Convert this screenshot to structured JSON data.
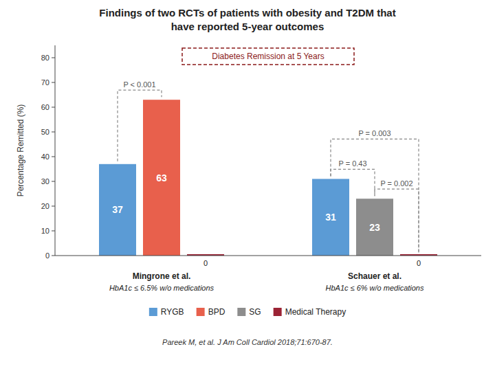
{
  "chart_data": {
    "type": "bar",
    "title": [
      "Findings of two RCTs of patients with obesity and T2DM that",
      "have reported 5-year outcomes"
    ],
    "subtitle": "Diabetes Remission at 5 Years",
    "y_label": "Percentage Remitted (%)",
    "categories": [
      "Mingrone et al.",
      "Schauer et al."
    ],
    "series": [
      {
        "name": "RYGB",
        "color": "#5b9bd5",
        "values": [
          37,
          31
        ]
      },
      {
        "name": "BPD",
        "color": "#e8604c",
        "values": [
          63,
          null
        ]
      },
      {
        "name": "SG",
        "color": "#8d8d8d",
        "values": [
          null,
          23
        ]
      },
      {
        "name": "Medical Therapy",
        "color": "#9b2335",
        "values": [
          0,
          0
        ]
      }
    ],
    "ylim": [
      0,
      85
    ],
    "yticks": [
      0,
      10,
      20,
      30,
      40,
      50,
      60,
      70,
      80
    ],
    "grid": false,
    "data_labels": true,
    "annotations": [
      {
        "text": "P < 0.001",
        "category": "Mingrone et al.",
        "between": [
          "RYGB",
          "BPD"
        ]
      },
      {
        "text": "P = 0.003",
        "category": "Schauer et al.",
        "between": [
          "RYGB",
          "Medical Therapy"
        ]
      },
      {
        "text": "P = 0.43",
        "category": "Schauer et al.",
        "between": [
          "RYGB",
          "SG"
        ]
      },
      {
        "text": "P = 0.002",
        "category": "Schauer et al.",
        "between": [
          "SG",
          "Medical Therapy"
        ]
      },
      {
        "text": "HbA1c ≤ 6.5% w/o medications",
        "category": "Mingrone et al."
      },
      {
        "text": "HbA1c ≤ 6% w/o medications",
        "category": "Schauer et al."
      }
    ],
    "source": "Pareek M, et al. J Am Coll Cardiol 2018;71:670-87."
  }
}
